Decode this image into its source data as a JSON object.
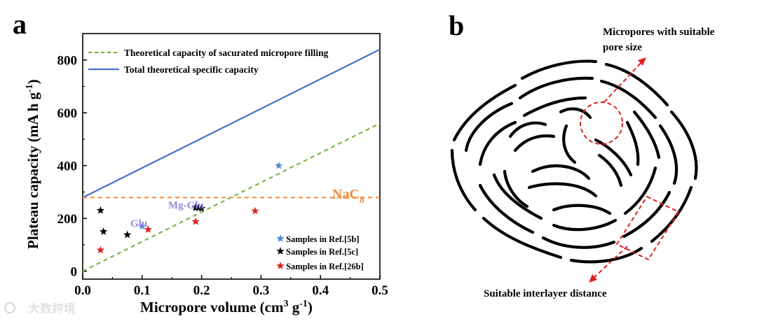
{
  "panel_a_label": "a",
  "panel_b_label": "b",
  "watermark": "大数跨境",
  "chart_data": {
    "type": "scatter",
    "xlabel": "Micropore volume (cm³ g⁻¹)",
    "ylabel": "Plateau capacity (mA h g⁻¹)",
    "xlim": [
      0.0,
      0.5
    ],
    "ylim": [
      -30,
      900
    ],
    "xticks": [
      "0.0",
      "0.1",
      "0.2",
      "0.3",
      "0.4",
      "0.5"
    ],
    "yticks": [
      "0",
      "200",
      "400",
      "600",
      "800"
    ],
    "lines": [
      {
        "name": "Theoretical  capacity of sacurated micropore filling",
        "style": "dashed",
        "color": "#6cb33e",
        "points": [
          [
            0.0,
            0
          ],
          [
            0.5,
            560
          ]
        ]
      },
      {
        "name": "Total theoretical specific capacity",
        "style": "solid",
        "color": "#4472c4",
        "points": [
          [
            0.0,
            279
          ],
          [
            0.5,
            840
          ]
        ]
      },
      {
        "name": "NaC8",
        "style": "dashed",
        "color": "#f08a3c",
        "points": [
          [
            0.0,
            279
          ],
          [
            0.5,
            279
          ]
        ]
      }
    ],
    "series": [
      {
        "name": "Samples in Ref.[5b]",
        "color": "#4a8bd6",
        "points": [
          [
            0.33,
            400
          ],
          [
            0.19,
            245
          ],
          [
            0.1,
            170
          ]
        ]
      },
      {
        "name": "Samples in Ref.[5c]",
        "color": "#000000",
        "points": [
          [
            0.03,
            230
          ],
          [
            0.035,
            150
          ],
          [
            0.075,
            138
          ],
          [
            0.19,
            240
          ],
          [
            0.195,
            240
          ],
          [
            0.2,
            238
          ]
        ]
      },
      {
        "name": "Samples in Ref.[26b]",
        "color": "#e02020",
        "points": [
          [
            0.03,
            80
          ],
          [
            0.11,
            158
          ],
          [
            0.19,
            188
          ],
          [
            0.29,
            228
          ]
        ]
      }
    ],
    "annotations": [
      {
        "text": "Mg-Glu",
        "color": "#9b86e0"
      },
      {
        "text": "Glu",
        "color": "#9b86e0"
      },
      {
        "text": "NaC",
        "sub": "8",
        "color": "#f08a3c"
      }
    ]
  },
  "diagram": {
    "label_top_line1": "Micropores with suitable",
    "label_top_line2": "pore size",
    "label_bottom": "Suitable interlayer distance"
  }
}
